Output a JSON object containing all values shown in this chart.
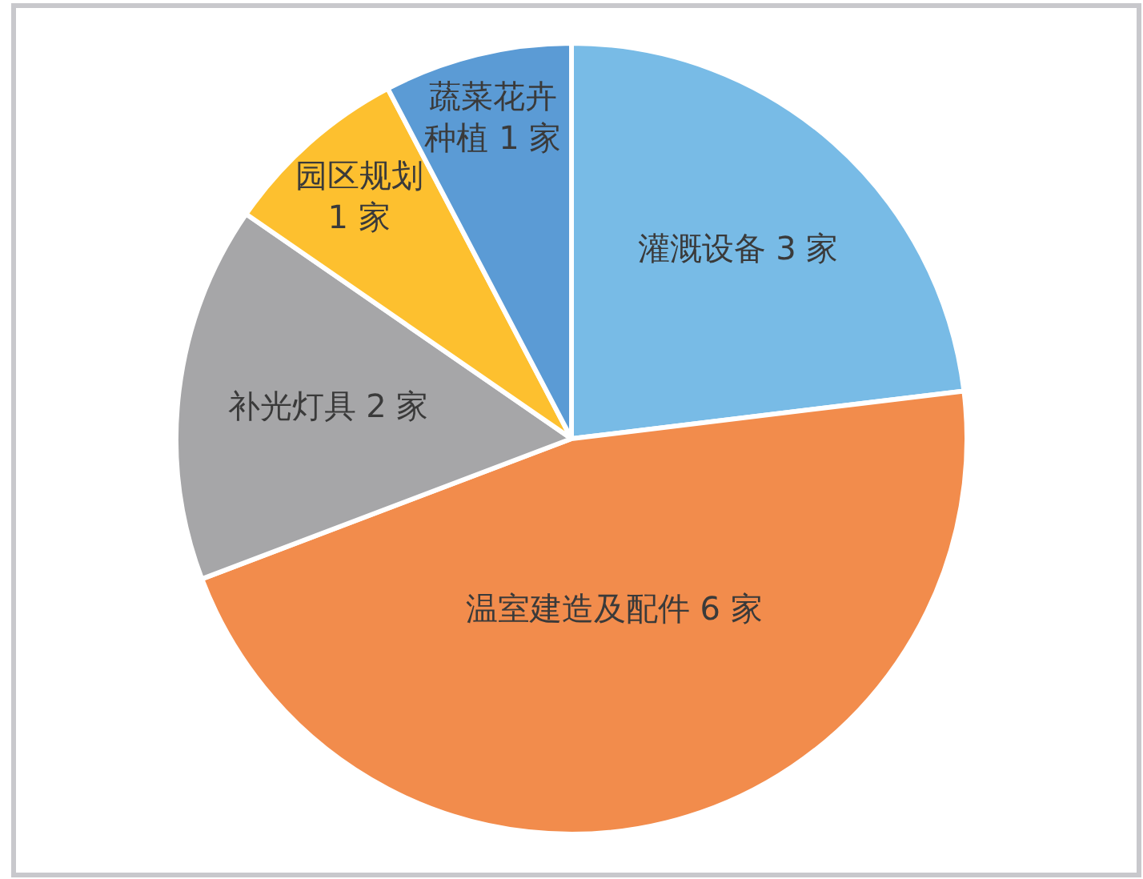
{
  "chart_data": {
    "type": "pie",
    "categories": [
      "灌溉设备",
      "温室建造及配件",
      "补光灯具",
      "园区规划",
      "蔬菜花卉种植"
    ],
    "values": [
      3,
      6,
      2,
      1,
      1
    ],
    "colors": [
      "#78bbe6",
      "#f28c4c",
      "#a6a6a8",
      "#fdc02f",
      "#5b9bd5"
    ],
    "value_labels": [
      "3 家",
      "6 家",
      "2 家",
      "1 家",
      "1 家"
    ],
    "legend": false
  }
}
